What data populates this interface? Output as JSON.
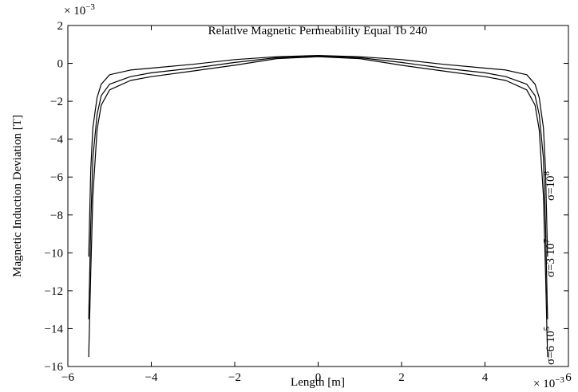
{
  "chart_data": {
    "type": "line",
    "title": "Relative Magnetic Permeability  Equal To 240",
    "xlabel": "Length [m]",
    "ylabel": "Magnetic Induction Deviation [T]",
    "x_multiplier": "× 10",
    "x_multiplier_exp": "−3",
    "y_multiplier": "× 10",
    "y_multiplier_exp": "−3",
    "xlim": [
      -6,
      6
    ],
    "ylim": [
      -16,
      2
    ],
    "xticks": [
      -6,
      -4,
      -2,
      0,
      2,
      4,
      6
    ],
    "yticks": [
      2,
      0,
      -2,
      -4,
      -6,
      -8,
      -10,
      -12,
      -14,
      -16
    ],
    "xtick_labels": [
      "−6",
      "−4",
      "−2",
      "0",
      "2",
      "4",
      "6"
    ],
    "ytick_labels": [
      "2",
      "0",
      "−2",
      "−4",
      "−6",
      "−8",
      "−10",
      "−12",
      "−14",
      "−16"
    ],
    "grid": false,
    "line_color": "#000000",
    "annotations": [
      {
        "base": "σ=6 10",
        "sup": "5"
      },
      {
        "base": "σ=3 10",
        "sup": "7"
      },
      {
        "base": "σ=10",
        "sup": "8"
      }
    ],
    "x": [
      -5.5,
      -5.45,
      -5.4,
      -5.3,
      -5.2,
      -5.0,
      -4.5,
      -4.0,
      -3.0,
      -2.0,
      -1.0,
      0,
      1.0,
      2.0,
      3.0,
      4.0,
      4.5,
      5.0,
      5.2,
      5.3,
      5.4,
      5.45,
      5.5
    ],
    "series": [
      {
        "values": [
          -15.5,
          -11.0,
          -7.0,
          -3.5,
          -2.2,
          -1.4,
          -0.9,
          -0.7,
          -0.4,
          -0.1,
          0.25,
          0.35,
          0.25,
          -0.1,
          -0.4,
          -0.7,
          -0.9,
          -1.4,
          -2.2,
          -3.5,
          -7.0,
          -11.0,
          -15.5
        ]
      },
      {
        "values": [
          -13.5,
          -8.5,
          -5.0,
          -2.7,
          -1.7,
          -1.1,
          -0.7,
          -0.5,
          -0.25,
          0.05,
          0.3,
          0.38,
          0.3,
          0.05,
          -0.25,
          -0.5,
          -0.7,
          -1.1,
          -1.7,
          -2.7,
          -5.0,
          -8.5,
          -13.5
        ]
      },
      {
        "values": [
          -10.2,
          -5.6,
          -3.4,
          -1.8,
          -1.1,
          -0.6,
          -0.35,
          -0.25,
          -0.05,
          0.2,
          0.35,
          0.42,
          0.35,
          0.2,
          -0.05,
          -0.25,
          -0.35,
          -0.6,
          -1.1,
          -1.8,
          -3.4,
          -5.6,
          -10.2
        ]
      }
    ]
  }
}
